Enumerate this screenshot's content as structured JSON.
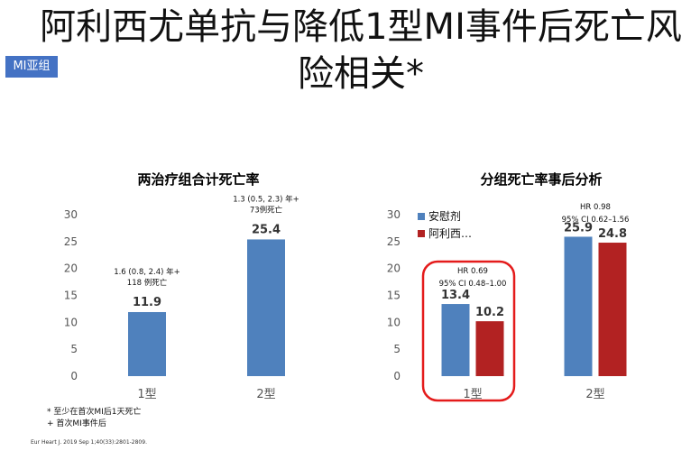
{
  "slide": {
    "title": "阿利西尤单抗与降低1型MI事件后死亡风险相关*",
    "badge": "MI亚组",
    "footnotes": [
      "* 至少在首次MI后1天死亡",
      "+ 首次MI事件后"
    ],
    "citation": "Eur Heart J. 2019 Sep 1;40(33):2801-2809."
  },
  "colors": {
    "blue": "#4f81bd",
    "red": "#b22222",
    "highlight": "#e41b1b",
    "badge": "#4472c4"
  },
  "chart_data": [
    {
      "type": "bar",
      "title": "两治疗组合计死亡率",
      "categories": [
        "1型",
        "2型"
      ],
      "values": [
        11.9,
        25.4
      ],
      "value_labels": [
        "11.9",
        "25.4"
      ],
      "annotations": [
        [
          "1.6 (0.8, 2.4) 年+",
          "118 例死亡"
        ],
        [
          "1.3 (0.5, 2.3) 年+",
          "73例死亡"
        ]
      ],
      "ylim": [
        0,
        30
      ],
      "yticks": [
        0,
        5,
        10,
        15,
        20,
        25,
        30
      ],
      "grid": false
    },
    {
      "type": "bar",
      "title": "分组死亡率事后分析",
      "categories": [
        "1型",
        "2型"
      ],
      "series": [
        {
          "name": "安慰剂",
          "values": [
            13.4,
            25.9
          ],
          "labels": [
            "13.4",
            "25.9"
          ]
        },
        {
          "name": "阿利西…",
          "values": [
            10.2,
            24.8
          ],
          "labels": [
            "10.2",
            "24.8"
          ]
        }
      ],
      "annotations": [
        [
          "HR 0.69",
          "95% CI 0.48–1.00"
        ],
        [
          "HR 0.98",
          "95% CI 0.62–1.56"
        ]
      ],
      "highlighted_category": "1型",
      "legend": "top-left",
      "ylim": [
        0,
        30
      ],
      "yticks": [
        0,
        5,
        10,
        15,
        20,
        25,
        30
      ],
      "grid": false
    }
  ]
}
